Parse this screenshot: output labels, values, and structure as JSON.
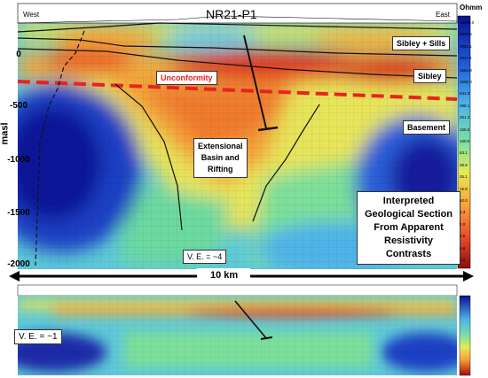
{
  "upper": {
    "west_label": "West",
    "east_label": "East",
    "borehole_label": "NR21-P1",
    "legend_unit": "Ohmm",
    "legend_values": [
      "10000.0",
      "6309.6",
      "3981.1",
      "2511.9",
      "1584.9",
      "1000.0",
      "631.0",
      "398.1",
      "251.2",
      "158.5",
      "100.0",
      "63.1",
      "39.8",
      "25.1",
      "15.8",
      "10.0",
      "6.3",
      "4.0",
      "2.5",
      "1.6",
      "1.0"
    ],
    "y_axis_label": "masl",
    "y_ticks": [
      "0",
      "-500",
      "-1000",
      "-1500",
      "-2000"
    ],
    "unit_labels": {
      "sibley_sills": "Sibley + Sills",
      "sibley": "Sibley",
      "unconformity": "Unconformity",
      "basement": "Basement",
      "basin": "Extensional\nBasin and\nRifting",
      "interpretation": "Interpreted\nGeological Section\nFrom Apparent\nResistivity\nContrasts"
    },
    "vertical_exaggeration": "V. E. = ~4",
    "colors": {
      "unconformity_line": "#e8231f",
      "unconformity_text": "#e8231f"
    }
  },
  "scale_bar": {
    "label": "10 km"
  },
  "lower": {
    "vertical_exaggeration": "V. E. = ~1"
  }
}
